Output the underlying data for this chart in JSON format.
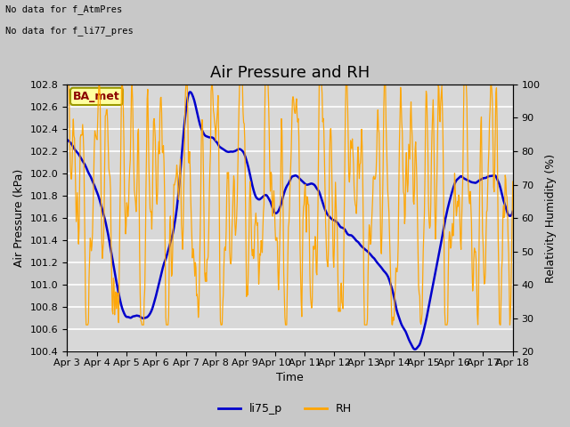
{
  "title": "Air Pressure and RH",
  "xlabel": "Time",
  "ylabel_left": "Air Pressure (kPa)",
  "ylabel_right": "Relativity Humidity (%)",
  "annotation_line1": "No data for f_AtmPres",
  "annotation_line2": "No data for f_li77_pres",
  "ba_met_label": "BA_met",
  "legend_labels": [
    "li75_p",
    "RH"
  ],
  "left_color": "#0000cc",
  "right_color": "#ffa500",
  "ylim_left": [
    100.4,
    102.8
  ],
  "ylim_right": [
    20,
    100
  ],
  "yticks_left": [
    100.4,
    100.6,
    100.8,
    101.0,
    101.2,
    101.4,
    101.6,
    101.8,
    102.0,
    102.2,
    102.4,
    102.6,
    102.8
  ],
  "yticks_right": [
    20,
    30,
    40,
    50,
    60,
    70,
    80,
    90,
    100
  ],
  "x_tick_labels": [
    "Apr 3",
    "Apr 4",
    "Apr 5",
    "Apr 6",
    "Apr 7",
    "Apr 8",
    "Apr 9",
    "Apr 10",
    "Apr 11",
    "Apr 12",
    "Apr 13",
    "Apr 14",
    "Apr 15",
    "Apr 16",
    "Apr 17",
    "Apr 18"
  ],
  "fig_bg_color": "#c8c8c8",
  "plot_bg_color": "#d8d8d8",
  "grid_color": "#ffffff",
  "title_fontsize": 13,
  "label_fontsize": 9,
  "tick_fontsize": 8
}
